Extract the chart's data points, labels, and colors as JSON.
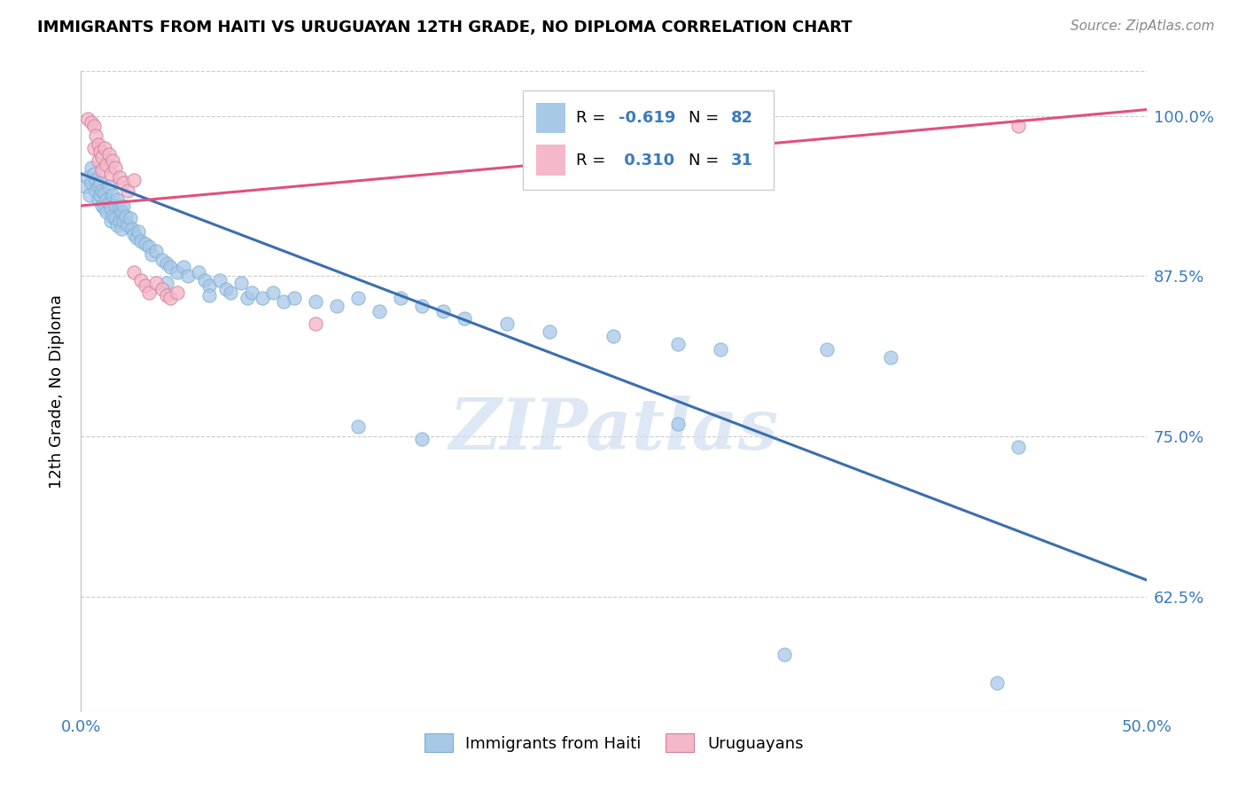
{
  "title": "IMMIGRANTS FROM HAITI VS URUGUAYAN 12TH GRADE, NO DIPLOMA CORRELATION CHART",
  "source": "Source: ZipAtlas.com",
  "ylabel": "12th Grade, No Diploma",
  "xlim": [
    0.0,
    0.5
  ],
  "ylim": [
    0.535,
    1.035
  ],
  "xticks": [
    0.0,
    0.1,
    0.2,
    0.3,
    0.4,
    0.5
  ],
  "xticklabels": [
    "0.0%",
    "",
    "",
    "",
    "",
    "50.0%"
  ],
  "yticks": [
    0.625,
    0.75,
    0.875,
    1.0
  ],
  "yticklabels": [
    "62.5%",
    "75.0%",
    "87.5%",
    "100.0%"
  ],
  "haiti_color": "#a8c8e8",
  "uruguay_color": "#f4b8c8",
  "haiti_line_color": "#3a6faf",
  "uruguay_line_color": "#e05080",
  "watermark": "ZIPatlas",
  "legend_label1": "Immigrants from Haiti",
  "legend_label2": "Uruguayans",
  "haiti_scatter": [
    [
      0.002,
      0.945
    ],
    [
      0.003,
      0.952
    ],
    [
      0.004,
      0.938
    ],
    [
      0.005,
      0.96
    ],
    [
      0.005,
      0.948
    ],
    [
      0.006,
      0.955
    ],
    [
      0.007,
      0.95
    ],
    [
      0.007,
      0.942
    ],
    [
      0.008,
      0.945
    ],
    [
      0.008,
      0.935
    ],
    [
      0.009,
      0.948
    ],
    [
      0.009,
      0.938
    ],
    [
      0.01,
      0.942
    ],
    [
      0.01,
      0.93
    ],
    [
      0.011,
      0.94
    ],
    [
      0.011,
      0.928
    ],
    [
      0.012,
      0.935
    ],
    [
      0.012,
      0.925
    ],
    [
      0.013,
      0.932
    ],
    [
      0.013,
      0.945
    ],
    [
      0.014,
      0.928
    ],
    [
      0.014,
      0.918
    ],
    [
      0.015,
      0.938
    ],
    [
      0.015,
      0.922
    ],
    [
      0.016,
      0.93
    ],
    [
      0.016,
      0.92
    ],
    [
      0.017,
      0.935
    ],
    [
      0.017,
      0.915
    ],
    [
      0.018,
      0.928
    ],
    [
      0.018,
      0.918
    ],
    [
      0.019,
      0.925
    ],
    [
      0.019,
      0.912
    ],
    [
      0.02,
      0.93
    ],
    [
      0.02,
      0.918
    ],
    [
      0.021,
      0.922
    ],
    [
      0.022,
      0.915
    ],
    [
      0.023,
      0.92
    ],
    [
      0.024,
      0.912
    ],
    [
      0.025,
      0.908
    ],
    [
      0.026,
      0.905
    ],
    [
      0.027,
      0.91
    ],
    [
      0.028,
      0.902
    ],
    [
      0.03,
      0.9
    ],
    [
      0.032,
      0.898
    ],
    [
      0.033,
      0.892
    ],
    [
      0.035,
      0.895
    ],
    [
      0.038,
      0.888
    ],
    [
      0.04,
      0.885
    ],
    [
      0.042,
      0.882
    ],
    [
      0.045,
      0.878
    ],
    [
      0.048,
      0.882
    ],
    [
      0.05,
      0.875
    ],
    [
      0.055,
      0.878
    ],
    [
      0.058,
      0.872
    ],
    [
      0.06,
      0.868
    ],
    [
      0.065,
      0.872
    ],
    [
      0.068,
      0.865
    ],
    [
      0.07,
      0.862
    ],
    [
      0.075,
      0.87
    ],
    [
      0.078,
      0.858
    ],
    [
      0.08,
      0.862
    ],
    [
      0.085,
      0.858
    ],
    [
      0.09,
      0.862
    ],
    [
      0.095,
      0.855
    ],
    [
      0.1,
      0.858
    ],
    [
      0.11,
      0.855
    ],
    [
      0.12,
      0.852
    ],
    [
      0.13,
      0.858
    ],
    [
      0.14,
      0.848
    ],
    [
      0.15,
      0.858
    ],
    [
      0.16,
      0.852
    ],
    [
      0.17,
      0.848
    ],
    [
      0.18,
      0.842
    ],
    [
      0.2,
      0.838
    ],
    [
      0.22,
      0.832
    ],
    [
      0.25,
      0.828
    ],
    [
      0.28,
      0.822
    ],
    [
      0.3,
      0.818
    ],
    [
      0.35,
      0.818
    ],
    [
      0.38,
      0.812
    ],
    [
      0.04,
      0.87
    ],
    [
      0.06,
      0.86
    ],
    [
      0.13,
      0.758
    ],
    [
      0.16,
      0.748
    ],
    [
      0.28,
      0.76
    ],
    [
      0.44,
      0.742
    ],
    [
      0.33,
      0.58
    ],
    [
      0.43,
      0.558
    ]
  ],
  "uruguay_scatter": [
    [
      0.003,
      0.998
    ],
    [
      0.005,
      0.995
    ],
    [
      0.006,
      0.992
    ],
    [
      0.006,
      0.975
    ],
    [
      0.007,
      0.985
    ],
    [
      0.008,
      0.978
    ],
    [
      0.008,
      0.965
    ],
    [
      0.009,
      0.972
    ],
    [
      0.01,
      0.968
    ],
    [
      0.01,
      0.958
    ],
    [
      0.011,
      0.975
    ],
    [
      0.012,
      0.962
    ],
    [
      0.013,
      0.97
    ],
    [
      0.014,
      0.955
    ],
    [
      0.015,
      0.965
    ],
    [
      0.016,
      0.96
    ],
    [
      0.018,
      0.952
    ],
    [
      0.02,
      0.948
    ],
    [
      0.022,
      0.942
    ],
    [
      0.025,
      0.95
    ],
    [
      0.025,
      0.878
    ],
    [
      0.028,
      0.872
    ],
    [
      0.03,
      0.868
    ],
    [
      0.032,
      0.862
    ],
    [
      0.035,
      0.87
    ],
    [
      0.038,
      0.865
    ],
    [
      0.04,
      0.86
    ],
    [
      0.042,
      0.858
    ],
    [
      0.045,
      0.862
    ],
    [
      0.11,
      0.838
    ],
    [
      0.44,
      0.992
    ]
  ],
  "haiti_trendline_x": [
    0.0,
    0.5
  ],
  "haiti_trendline_y": [
    0.955,
    0.638
  ],
  "uruguay_trendline_x": [
    0.0,
    0.5
  ],
  "uruguay_trendline_y": [
    0.93,
    1.005
  ]
}
